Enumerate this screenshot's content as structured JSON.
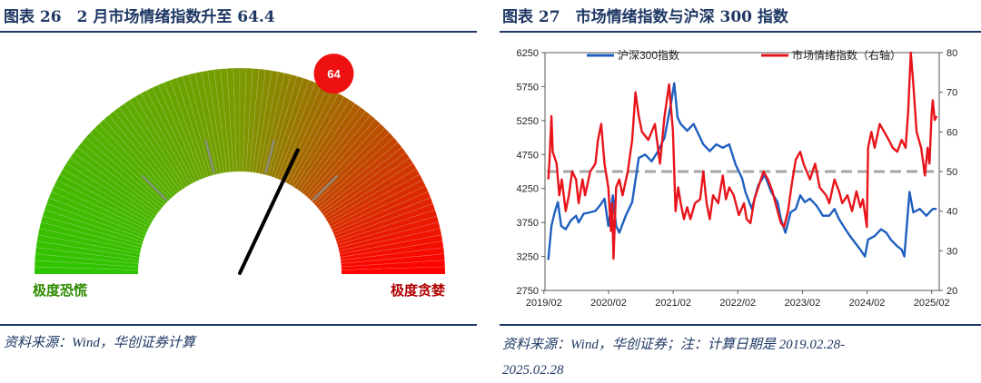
{
  "left": {
    "title": "图表 26　2 月市场情绪指数升至 64.4",
    "source": "资料来源：Wind，华创证券计算"
  },
  "right": {
    "title": "图表 27　市场情绪指数与沪深 300 指数",
    "source_line1": "资料来源：Wind，华创证券；注：计算日期是 2019.02.28-",
    "source_line2": "2025.02.28"
  },
  "chart_data": [
    {
      "type": "gauge",
      "value": 64,
      "value_label": "64",
      "min": 0,
      "max": 100,
      "label_left": "极度恐慌",
      "label_right": "极度贪婪",
      "colors": {
        "low": "#2fc400",
        "mid": "#7a9a00",
        "high": "#ff0000",
        "needle": "#000000",
        "badge": "#ee1111"
      }
    },
    {
      "type": "line",
      "x_ticks": [
        "2019/02",
        "2020/02",
        "2021/02",
        "2022/02",
        "2023/02",
        "2024/02",
        "2025/02"
      ],
      "xlim": [
        2019.1,
        2025.2
      ],
      "y_left": {
        "ticks": [
          "2750",
          "3250",
          "3750",
          "4250",
          "4750",
          "5250",
          "5750",
          "6250"
        ],
        "ylim": [
          2750,
          6250
        ]
      },
      "y_right": {
        "ticks": [
          "20",
          "30",
          "40",
          "50",
          "60",
          "70",
          "80"
        ],
        "ylim": [
          20,
          80
        ]
      },
      "reference_line": {
        "axis": "right",
        "value": 50,
        "color": "#a6a6a6"
      },
      "series": [
        {
          "name": "沪深300指数",
          "axis": "left",
          "color": "#1f5fbf",
          "points": [
            [
              2019.15,
              3200
            ],
            [
              2019.2,
              3700
            ],
            [
              2019.25,
              3900
            ],
            [
              2019.3,
              4050
            ],
            [
              2019.35,
              3700
            ],
            [
              2019.42,
              3650
            ],
            [
              2019.5,
              3780
            ],
            [
              2019.58,
              3850
            ],
            [
              2019.62,
              3750
            ],
            [
              2019.7,
              3880
            ],
            [
              2019.8,
              3900
            ],
            [
              2019.88,
              3920
            ],
            [
              2019.95,
              4000
            ],
            [
              2020.02,
              4100
            ],
            [
              2020.08,
              3700
            ],
            [
              2020.15,
              4150
            ],
            [
              2020.2,
              3700
            ],
            [
              2020.25,
              3600
            ],
            [
              2020.35,
              3850
            ],
            [
              2020.45,
              4050
            ],
            [
              2020.55,
              4700
            ],
            [
              2020.65,
              4750
            ],
            [
              2020.75,
              4650
            ],
            [
              2020.85,
              4800
            ],
            [
              2020.95,
              5000
            ],
            [
              2021.05,
              5500
            ],
            [
              2021.1,
              5800
            ],
            [
              2021.15,
              5300
            ],
            [
              2021.2,
              5200
            ],
            [
              2021.3,
              5100
            ],
            [
              2021.4,
              5200
            ],
            [
              2021.5,
              5000
            ],
            [
              2021.55,
              4900
            ],
            [
              2021.65,
              4800
            ],
            [
              2021.75,
              4900
            ],
            [
              2021.85,
              4850
            ],
            [
              2021.95,
              4900
            ],
            [
              2022.05,
              4600
            ],
            [
              2022.15,
              4400
            ],
            [
              2022.2,
              4200
            ],
            [
              2022.3,
              3950
            ],
            [
              2022.4,
              4300
            ],
            [
              2022.5,
              4450
            ],
            [
              2022.6,
              4200
            ],
            [
              2022.7,
              4050
            ],
            [
              2022.75,
              3800
            ],
            [
              2022.82,
              3600
            ],
            [
              2022.9,
              3900
            ],
            [
              2022.98,
              3950
            ],
            [
              2023.05,
              4150
            ],
            [
              2023.12,
              4050
            ],
            [
              2023.2,
              4100
            ],
            [
              2023.3,
              4000
            ],
            [
              2023.4,
              3850
            ],
            [
              2023.5,
              3850
            ],
            [
              2023.58,
              3950
            ],
            [
              2023.65,
              3800
            ],
            [
              2023.75,
              3650
            ],
            [
              2023.82,
              3550
            ],
            [
              2023.9,
              3450
            ],
            [
              2023.98,
              3350
            ],
            [
              2024.05,
              3250
            ],
            [
              2024.1,
              3500
            ],
            [
              2024.2,
              3550
            ],
            [
              2024.3,
              3650
            ],
            [
              2024.38,
              3600
            ],
            [
              2024.45,
              3500
            ],
            [
              2024.55,
              3400
            ],
            [
              2024.62,
              3350
            ],
            [
              2024.66,
              3250
            ],
            [
              2024.72,
              3950
            ],
            [
              2024.74,
              4200
            ],
            [
              2024.8,
              3900
            ],
            [
              2024.9,
              3950
            ],
            [
              2025.0,
              3850
            ],
            [
              2025.1,
              3950
            ],
            [
              2025.16,
              3950
            ]
          ]
        },
        {
          "name": "市场情绪指数（右轴）",
          "axis": "right",
          "color": "#e8141b",
          "points": [
            [
              2019.15,
              48
            ],
            [
              2019.17,
              53
            ],
            [
              2019.2,
              64
            ],
            [
              2019.22,
              55
            ],
            [
              2019.28,
              52
            ],
            [
              2019.32,
              44
            ],
            [
              2019.36,
              48
            ],
            [
              2019.42,
              40
            ],
            [
              2019.47,
              44
            ],
            [
              2019.52,
              50
            ],
            [
              2019.58,
              48
            ],
            [
              2019.62,
              42
            ],
            [
              2019.68,
              48
            ],
            [
              2019.72,
              44
            ],
            [
              2019.8,
              50
            ],
            [
              2019.88,
              52
            ],
            [
              2019.92,
              58
            ],
            [
              2019.97,
              62
            ],
            [
              2020.02,
              52
            ],
            [
              2020.08,
              46
            ],
            [
              2020.12,
              35
            ],
            [
              2020.14,
              42
            ],
            [
              2020.16,
              28
            ],
            [
              2020.2,
              46
            ],
            [
              2020.25,
              48
            ],
            [
              2020.3,
              44
            ],
            [
              2020.38,
              50
            ],
            [
              2020.45,
              58
            ],
            [
              2020.5,
              70
            ],
            [
              2020.55,
              64
            ],
            [
              2020.6,
              60
            ],
            [
              2020.7,
              58
            ],
            [
              2020.8,
              62
            ],
            [
              2020.88,
              52
            ],
            [
              2020.95,
              64
            ],
            [
              2021.02,
              72
            ],
            [
              2021.08,
              60
            ],
            [
              2021.12,
              40
            ],
            [
              2021.16,
              46
            ],
            [
              2021.2,
              42
            ],
            [
              2021.25,
              38
            ],
            [
              2021.3,
              41
            ],
            [
              2021.35,
              38
            ],
            [
              2021.42,
              42
            ],
            [
              2021.5,
              43
            ],
            [
              2021.55,
              50
            ],
            [
              2021.6,
              42
            ],
            [
              2021.65,
              38
            ],
            [
              2021.7,
              44
            ],
            [
              2021.78,
              42
            ],
            [
              2021.85,
              49
            ],
            [
              2021.9,
              43
            ],
            [
              2021.95,
              46
            ],
            [
              2022.02,
              44
            ],
            [
              2022.1,
              39
            ],
            [
              2022.18,
              42
            ],
            [
              2022.22,
              38
            ],
            [
              2022.28,
              37
            ],
            [
              2022.34,
              43
            ],
            [
              2022.4,
              46
            ],
            [
              2022.48,
              50
            ],
            [
              2022.55,
              48
            ],
            [
              2022.62,
              45
            ],
            [
              2022.7,
              40
            ],
            [
              2022.75,
              37
            ],
            [
              2022.8,
              36
            ],
            [
              2022.86,
              40
            ],
            [
              2022.92,
              47
            ],
            [
              2022.98,
              53
            ],
            [
              2023.05,
              55
            ],
            [
              2023.1,
              52
            ],
            [
              2023.2,
              48
            ],
            [
              2023.28,
              52
            ],
            [
              2023.35,
              46
            ],
            [
              2023.45,
              44
            ],
            [
              2023.5,
              42
            ],
            [
              2023.58,
              48
            ],
            [
              2023.65,
              45
            ],
            [
              2023.7,
              42
            ],
            [
              2023.78,
              44
            ],
            [
              2023.85,
              40
            ],
            [
              2023.92,
              45
            ],
            [
              2023.98,
              41
            ],
            [
              2024.02,
              43
            ],
            [
              2024.08,
              36
            ],
            [
              2024.1,
              56
            ],
            [
              2024.15,
              60
            ],
            [
              2024.2,
              56
            ],
            [
              2024.28,
              62
            ],
            [
              2024.35,
              60
            ],
            [
              2024.42,
              58
            ],
            [
              2024.48,
              56
            ],
            [
              2024.55,
              55
            ],
            [
              2024.62,
              58
            ],
            [
              2024.68,
              56
            ],
            [
              2024.72,
              65
            ],
            [
              2024.76,
              80
            ],
            [
              2024.8,
              72
            ],
            [
              2024.85,
              60
            ],
            [
              2024.92,
              56
            ],
            [
              2024.98,
              49
            ],
            [
              2025.02,
              56
            ],
            [
              2025.05,
              52
            ],
            [
              2025.08,
              64
            ],
            [
              2025.1,
              68
            ],
            [
              2025.13,
              63
            ],
            [
              2025.16,
              64
            ]
          ]
        }
      ]
    }
  ]
}
